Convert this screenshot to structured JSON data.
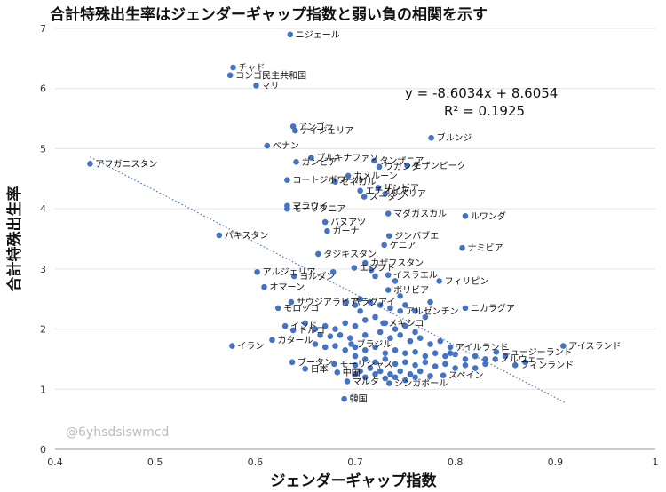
{
  "chart_data": {
    "type": "scatter",
    "title": "合計特殊出生率はジェンダーギャップ指数と弱い負の相関を示す",
    "xlabel": "ジェンダーギャップ指数",
    "ylabel": "合計特殊出生率",
    "xlim": [
      0.4,
      1.0
    ],
    "ylim": [
      0,
      7
    ],
    "xticks": [
      "0.4",
      "0.5",
      "0.6",
      "0.7",
      "0.8",
      "0.9",
      "1"
    ],
    "yticks": [
      "0",
      "1",
      "2",
      "3",
      "4",
      "5",
      "6",
      "7"
    ],
    "grid": "horizontal",
    "trendline": {
      "equation": "y = -8.6034x + 8.6054",
      "r2": "R² = 0.1925",
      "slope": -8.6034,
      "intercept": 8.6054,
      "x_range": [
        0.435,
        0.91
      ]
    },
    "watermark": "@6yhsdsiswmcd",
    "marker_color": "#4472c4",
    "labeled_points": [
      {
        "label": "ニジェール",
        "x": 0.635,
        "y": 6.9
      },
      {
        "label": "チャド",
        "x": 0.578,
        "y": 6.35
      },
      {
        "label": "コンゴ民主共和国",
        "x": 0.575,
        "y": 6.22
      },
      {
        "label": "マリ",
        "x": 0.601,
        "y": 6.05
      },
      {
        "label": "アンゴラ",
        "x": 0.638,
        "y": 5.37
      },
      {
        "label": "ナイジェリア",
        "x": 0.64,
        "y": 5.3
      },
      {
        "label": "ブルンジ",
        "x": 0.776,
        "y": 5.18
      },
      {
        "label": "ベナン",
        "x": 0.612,
        "y": 5.05
      },
      {
        "label": "アフガニスタン",
        "x": 0.435,
        "y": 4.75
      },
      {
        "label": "ブルキナファソ",
        "x": 0.656,
        "y": 4.85
      },
      {
        "label": "タンザニア",
        "x": 0.719,
        "y": 4.8
      },
      {
        "label": "ガンビア",
        "x": 0.641,
        "y": 4.78
      },
      {
        "label": "ウガンダ",
        "x": 0.724,
        "y": 4.7
      },
      {
        "label": "モザンビーク",
        "x": 0.752,
        "y": 4.72
      },
      {
        "label": "カメルーン",
        "x": 0.693,
        "y": 4.55
      },
      {
        "label": "コートジボワール",
        "x": 0.632,
        "y": 4.48
      },
      {
        "label": "セネガル",
        "x": 0.68,
        "y": 4.45
      },
      {
        "label": "ザンビア",
        "x": 0.723,
        "y": 4.35
      },
      {
        "label": "エチオピア",
        "x": 0.705,
        "y": 4.3
      },
      {
        "label": "リベリア",
        "x": 0.73,
        "y": 4.25
      },
      {
        "label": "スーダン",
        "x": 0.709,
        "y": 4.2
      },
      {
        "label": "マラウイ",
        "x": 0.632,
        "y": 4.05
      },
      {
        "label": "モーリタニア",
        "x": 0.632,
        "y": 4.0
      },
      {
        "label": "マダガスカル",
        "x": 0.733,
        "y": 3.92
      },
      {
        "label": "ルワンダ",
        "x": 0.81,
        "y": 3.88
      },
      {
        "label": "バヌアツ",
        "x": 0.67,
        "y": 3.78
      },
      {
        "label": "ガーナ",
        "x": 0.672,
        "y": 3.63
      },
      {
        "label": "ジンバブエ",
        "x": 0.734,
        "y": 3.55
      },
      {
        "label": "パキスタン",
        "x": 0.564,
        "y": 3.56
      },
      {
        "label": "ケニア",
        "x": 0.729,
        "y": 3.4
      },
      {
        "label": "ナミビア",
        "x": 0.807,
        "y": 3.35
      },
      {
        "label": "タジキスタン",
        "x": 0.663,
        "y": 3.25
      },
      {
        "label": "カザフスタン",
        "x": 0.71,
        "y": 3.1
      },
      {
        "label": "エジプト",
        "x": 0.699,
        "y": 3.02
      },
      {
        "label": "アルジェリア",
        "x": 0.602,
        "y": 2.95
      },
      {
        "label": "ヨルダン",
        "x": 0.639,
        "y": 2.88
      },
      {
        "label": "イスラエル",
        "x": 0.733,
        "y": 2.9
      },
      {
        "label": "フィリピン",
        "x": 0.784,
        "y": 2.8
      },
      {
        "label": "オマーン",
        "x": 0.609,
        "y": 2.7
      },
      {
        "label": "ボリビア",
        "x": 0.733,
        "y": 2.65
      },
      {
        "label": "サウジアラビア",
        "x": 0.636,
        "y": 2.45
      },
      {
        "label": "パラグアイ",
        "x": 0.691,
        "y": 2.45
      },
      {
        "label": "ニカラグア",
        "x": 0.81,
        "y": 2.35
      },
      {
        "label": "モロッコ",
        "x": 0.623,
        "y": 2.35
      },
      {
        "label": "アルゼンチン",
        "x": 0.745,
        "y": 2.3
      },
      {
        "label": "インド",
        "x": 0.63,
        "y": 2.05
      },
      {
        "label": "メキシコ",
        "x": 0.728,
        "y": 2.1
      },
      {
        "label": "トルコ",
        "x": 0.638,
        "y": 1.98
      },
      {
        "label": "イラン",
        "x": 0.577,
        "y": 1.72
      },
      {
        "label": "カタール",
        "x": 0.617,
        "y": 1.82
      },
      {
        "label": "ブラジル",
        "x": 0.696,
        "y": 1.75
      },
      {
        "label": "アイスランド",
        "x": 0.908,
        "y": 1.72
      },
      {
        "label": "ニュージーランド",
        "x": 0.841,
        "y": 1.62
      },
      {
        "label": "アイルランド",
        "x": 0.795,
        "y": 1.7
      },
      {
        "label": "ノルウェー",
        "x": 0.84,
        "y": 1.5
      },
      {
        "label": "フィンランド",
        "x": 0.86,
        "y": 1.4
      },
      {
        "label": "ブータン",
        "x": 0.637,
        "y": 1.45
      },
      {
        "label": "モーリシャス",
        "x": 0.679,
        "y": 1.42
      },
      {
        "label": "日本",
        "x": 0.65,
        "y": 1.34
      },
      {
        "label": "中国",
        "x": 0.682,
        "y": 1.28
      },
      {
        "label": "スペイン",
        "x": 0.788,
        "y": 1.23
      },
      {
        "label": "マルタ",
        "x": 0.692,
        "y": 1.13
      },
      {
        "label": "シンガポール",
        "x": 0.734,
        "y": 1.1
      },
      {
        "label": "韓国",
        "x": 0.689,
        "y": 0.84
      }
    ],
    "other_points": [
      [
        0.678,
        2.95
      ],
      [
        0.716,
        2.98
      ],
      [
        0.72,
        2.88
      ],
      [
        0.74,
        2.8
      ],
      [
        0.745,
        2.55
      ],
      [
        0.7,
        2.4
      ],
      [
        0.705,
        2.5
      ],
      [
        0.715,
        2.45
      ],
      [
        0.725,
        2.4
      ],
      [
        0.735,
        2.35
      ],
      [
        0.75,
        2.4
      ],
      [
        0.76,
        2.3
      ],
      [
        0.77,
        2.2
      ],
      [
        0.775,
        2.45
      ],
      [
        0.705,
        2.3
      ],
      [
        0.65,
        2.1
      ],
      [
        0.66,
        2.0
      ],
      [
        0.67,
        2.05
      ],
      [
        0.68,
        2.0
      ],
      [
        0.69,
        2.1
      ],
      [
        0.7,
        2.05
      ],
      [
        0.71,
        2.15
      ],
      [
        0.72,
        2.2
      ],
      [
        0.73,
        2.1
      ],
      [
        0.74,
        2.0
      ],
      [
        0.75,
        2.05
      ],
      [
        0.76,
        1.95
      ],
      [
        0.665,
        1.9
      ],
      [
        0.675,
        1.88
      ],
      [
        0.685,
        1.9
      ],
      [
        0.695,
        1.85
      ],
      [
        0.71,
        1.9
      ],
      [
        0.725,
        1.95
      ],
      [
        0.735,
        1.85
      ],
      [
        0.745,
        1.9
      ],
      [
        0.755,
        1.8
      ],
      [
        0.765,
        1.85
      ],
      [
        0.775,
        1.75
      ],
      [
        0.785,
        1.8
      ],
      [
        0.795,
        1.6
      ],
      [
        0.66,
        1.75
      ],
      [
        0.67,
        1.7
      ],
      [
        0.68,
        1.72
      ],
      [
        0.69,
        1.65
      ],
      [
        0.7,
        1.7
      ],
      [
        0.71,
        1.65
      ],
      [
        0.72,
        1.7
      ],
      [
        0.73,
        1.6
      ],
      [
        0.74,
        1.65
      ],
      [
        0.75,
        1.6
      ],
      [
        0.76,
        1.62
      ],
      [
        0.77,
        1.55
      ],
      [
        0.78,
        1.6
      ],
      [
        0.79,
        1.55
      ],
      [
        0.8,
        1.58
      ],
      [
        0.81,
        1.5
      ],
      [
        0.82,
        1.55
      ],
      [
        0.83,
        1.5
      ],
      [
        0.85,
        1.55
      ],
      [
        0.87,
        1.45
      ],
      [
        0.7,
        1.55
      ],
      [
        0.71,
        1.5
      ],
      [
        0.72,
        1.45
      ],
      [
        0.73,
        1.5
      ],
      [
        0.74,
        1.42
      ],
      [
        0.75,
        1.45
      ],
      [
        0.76,
        1.4
      ],
      [
        0.77,
        1.45
      ],
      [
        0.78,
        1.38
      ],
      [
        0.79,
        1.42
      ],
      [
        0.8,
        1.35
      ],
      [
        0.81,
        1.4
      ],
      [
        0.82,
        1.35
      ],
      [
        0.83,
        1.42
      ],
      [
        0.7,
        1.4
      ],
      [
        0.705,
        1.3
      ],
      [
        0.715,
        1.35
      ],
      [
        0.725,
        1.3
      ],
      [
        0.735,
        1.25
      ],
      [
        0.745,
        1.3
      ],
      [
        0.755,
        1.25
      ],
      [
        0.765,
        1.3
      ],
      [
        0.775,
        1.22
      ],
      [
        0.71,
        1.2
      ],
      [
        0.72,
        1.25
      ],
      [
        0.73,
        1.18
      ],
      [
        0.74,
        1.2
      ],
      [
        0.75,
        1.15
      ],
      [
        0.76,
        1.2
      ],
      [
        0.7,
        1.25
      ]
    ]
  }
}
